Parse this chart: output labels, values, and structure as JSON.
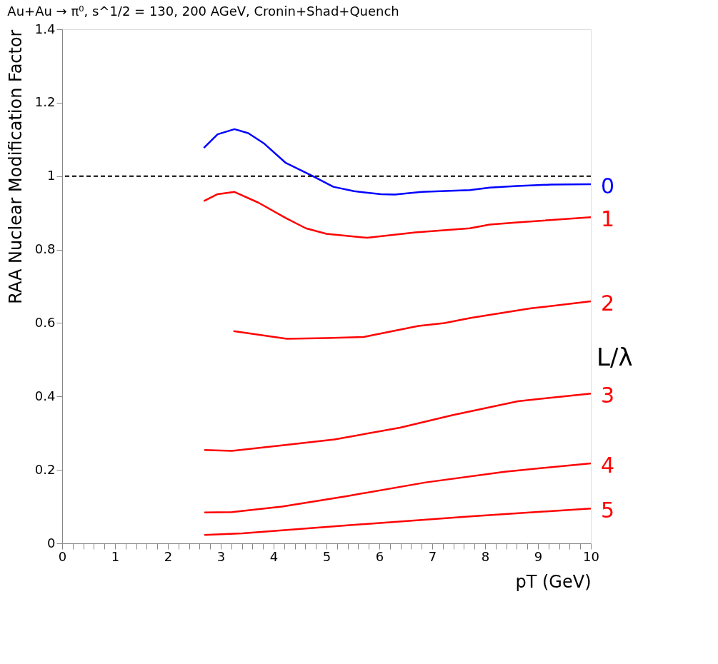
{
  "chart_data": {
    "type": "line",
    "title": "Au+Au → π⁰, s^1/2 = 130, 200 AGeV,  Cronin+Shad+Quench",
    "xlabel": "pT (GeV)",
    "ylabel": "RAA Nuclear Modification Factor",
    "annotations": [
      "L/λ"
    ],
    "xlim": [
      0,
      10
    ],
    "ylim": [
      0,
      1.4
    ],
    "xticks": [
      0,
      {
        "value": 0.2,
        "label": null
      },
      {
        "value": 0.4,
        "label": null
      },
      {
        "value": 0.6,
        "label": null
      },
      {
        "value": 0.8,
        "label": null
      },
      1,
      {
        "value": 1.2,
        "label": null
      },
      {
        "value": 1.4,
        "label": null
      },
      {
        "value": 1.6,
        "label": null
      },
      {
        "value": 1.8,
        "label": null
      },
      2,
      {
        "value": 2.2,
        "label": null
      },
      {
        "value": 2.4,
        "label": null
      },
      {
        "value": 2.6,
        "label": null
      },
      {
        "value": 2.8,
        "label": null
      },
      3,
      {
        "value": 3.2,
        "label": null
      },
      {
        "value": 3.4,
        "label": null
      },
      {
        "value": 3.6,
        "label": null
      },
      {
        "value": 3.8,
        "label": null
      },
      4,
      {
        "value": 4.2,
        "label": null
      },
      {
        "value": 4.4,
        "label": null
      },
      {
        "value": 4.6,
        "label": null
      },
      {
        "value": 4.8,
        "label": null
      },
      5,
      {
        "value": 5.2,
        "label": null
      },
      {
        "value": 5.4,
        "label": null
      },
      {
        "value": 5.6,
        "label": null
      },
      {
        "value": 5.8,
        "label": null
      },
      6,
      {
        "value": 6.2,
        "label": null
      },
      {
        "value": 6.4,
        "label": null
      },
      {
        "value": 6.6,
        "label": null
      },
      {
        "value": 6.8,
        "label": null
      },
      7,
      {
        "value": 7.2,
        "label": null
      },
      {
        "value": 7.4,
        "label": null
      },
      {
        "value": 7.6,
        "label": null
      },
      {
        "value": 7.8,
        "label": null
      },
      8,
      {
        "value": 8.2,
        "label": null
      },
      {
        "value": 8.4,
        "label": null
      },
      {
        "value": 8.6,
        "label": null
      },
      {
        "value": 8.8,
        "label": null
      },
      9,
      {
        "value": 9.2,
        "label": null
      },
      {
        "value": 9.4,
        "label": null
      },
      {
        "value": 9.6,
        "label": null
      },
      {
        "value": 9.8,
        "label": null
      },
      10
    ],
    "yticks": [
      0,
      0.2,
      0.4,
      0.6,
      0.8,
      1,
      1.2,
      1.4
    ],
    "grid": false,
    "marker": "none",
    "line_style": "solid",
    "ref_lines": [
      {
        "axis": "y",
        "value": 1,
        "color": "#000000",
        "line_style": "dashed"
      }
    ],
    "series": [
      {
        "name": "0",
        "color": "#0000ff",
        "x": [
          2.68,
          2.94,
          3.26,
          3.52,
          3.81,
          4.23,
          4.74,
          5.13,
          5.52,
          6.03,
          6.29,
          6.8,
          7.71,
          8.09,
          8.61,
          9.25,
          10
        ],
        "values": [
          1.077,
          1.114,
          1.128,
          1.117,
          1.09,
          1.036,
          1.0,
          0.971,
          0.959,
          0.951,
          0.95,
          0.957,
          0.962,
          0.969,
          0.973,
          0.977,
          0.978
        ]
      },
      {
        "name": "1",
        "color": "#ff0000",
        "x": [
          2.68,
          2.94,
          3.26,
          3.71,
          4.23,
          4.61,
          5.0,
          5.77,
          6.68,
          7.71,
          8.09,
          8.61,
          10
        ],
        "values": [
          0.932,
          0.951,
          0.957,
          0.928,
          0.886,
          0.858,
          0.843,
          0.832,
          0.847,
          0.858,
          0.868,
          0.874,
          0.888
        ]
      },
      {
        "name": "2",
        "color": "#ff0000",
        "x": [
          3.24,
          4.25,
          5.0,
          5.7,
          6.74,
          7.23,
          7.73,
          8.87,
          10
        ],
        "values": [
          0.578,
          0.557,
          0.559,
          0.562,
          0.592,
          0.6,
          0.614,
          0.64,
          0.659
        ]
      },
      {
        "name": "3",
        "color": "#ff0000",
        "x": [
          2.69,
          3.21,
          4.16,
          5.15,
          6.39,
          7.38,
          8.62,
          10
        ],
        "values": [
          0.254,
          0.252,
          0.267,
          0.283,
          0.315,
          0.349,
          0.387,
          0.408
        ]
      },
      {
        "name": "4",
        "color": "#ff0000",
        "x": [
          2.69,
          3.21,
          4.16,
          5.4,
          6.88,
          8.37,
          10
        ],
        "values": [
          0.084,
          0.085,
          0.1,
          0.129,
          0.166,
          0.195,
          0.218
        ]
      },
      {
        "name": "5",
        "color": "#ff0000",
        "x": [
          2.69,
          3.41,
          5.4,
          7.77,
          10
        ],
        "values": [
          0.023,
          0.027,
          0.049,
          0.074,
          0.095
        ]
      }
    ]
  }
}
